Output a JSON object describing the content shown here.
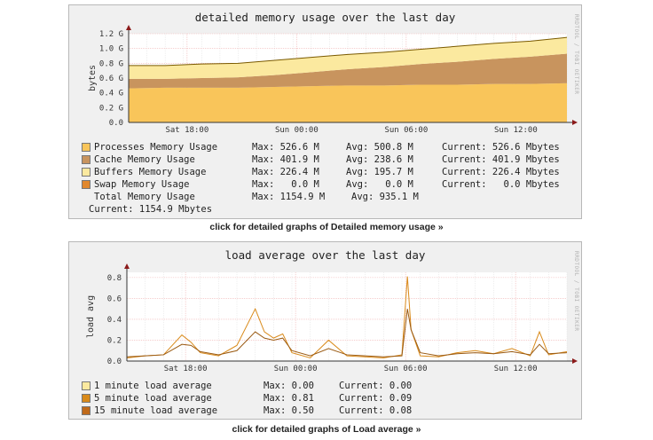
{
  "chart_data": [
    {
      "type": "area",
      "title": "detailed memory usage over the last day",
      "ylabel": "bytes",
      "ylim": [
        0,
        1.2
      ],
      "yticks": [
        "0.0",
        "0.2 G",
        "0.4 G",
        "0.6 G",
        "0.8 G",
        "1.0 G",
        "1.2 G"
      ],
      "xticks": [
        "Sat 18:00",
        "Sun 00:00",
        "Sun 06:00",
        "Sun 12:00"
      ],
      "x_hours": [
        0,
        2,
        4,
        6,
        8,
        10,
        12,
        14,
        16,
        18,
        20,
        22,
        24
      ],
      "stacked": true,
      "series": [
        {
          "name": "Processes Memory Usage",
          "color": "#f9c55a",
          "values": [
            0.46,
            0.47,
            0.47,
            0.47,
            0.48,
            0.49,
            0.5,
            0.5,
            0.51,
            0.51,
            0.52,
            0.52,
            0.53
          ]
        },
        {
          "name": "Cache Memory Usage",
          "color": "#c8945e",
          "values": [
            0.13,
            0.12,
            0.13,
            0.14,
            0.16,
            0.19,
            0.22,
            0.25,
            0.28,
            0.31,
            0.34,
            0.37,
            0.4
          ]
        },
        {
          "name": "Buffers Memory Usage",
          "color": "#fbe99f",
          "values": [
            0.18,
            0.18,
            0.19,
            0.19,
            0.2,
            0.2,
            0.2,
            0.2,
            0.2,
            0.21,
            0.21,
            0.21,
            0.22
          ]
        },
        {
          "name": "Swap Memory Usage",
          "color": "#e1882e",
          "values": [
            0,
            0,
            0,
            0,
            0,
            0,
            0,
            0,
            0,
            0,
            0,
            0,
            0
          ]
        }
      ],
      "total_line": {
        "name": "Total Memory Usage",
        "color": "#7a5a00"
      }
    },
    {
      "type": "line",
      "title": "load average over the last day",
      "ylabel": "load avg",
      "ylim": [
        0,
        0.85
      ],
      "yticks": [
        "0.0",
        "0.2",
        "0.4",
        "0.6",
        "0.8"
      ],
      "xticks": [
        "Sat 18:00",
        "Sun 00:00",
        "Sun 06:00",
        "Sun 12:00"
      ],
      "x_hours": [
        0,
        1,
        2,
        3,
        3.5,
        4,
        5,
        6,
        7,
        7.5,
        8,
        8.5,
        9,
        10,
        11,
        12,
        13,
        14,
        15,
        15.3,
        15.5,
        16,
        17,
        18,
        19,
        20,
        21,
        22,
        22.5,
        23,
        24
      ],
      "series": [
        {
          "name": "5 minute load average",
          "color": "#d98a1a",
          "values": [
            0.03,
            0.05,
            0.06,
            0.25,
            0.18,
            0.08,
            0.05,
            0.15,
            0.5,
            0.28,
            0.22,
            0.26,
            0.08,
            0.03,
            0.2,
            0.05,
            0.04,
            0.03,
            0.06,
            0.81,
            0.3,
            0.05,
            0.04,
            0.08,
            0.1,
            0.07,
            0.12,
            0.05,
            0.28,
            0.06,
            0.09
          ]
        },
        {
          "name": "15 minute load average",
          "color": "#9a5a12",
          "values": [
            0.04,
            0.05,
            0.06,
            0.16,
            0.15,
            0.09,
            0.06,
            0.1,
            0.28,
            0.22,
            0.2,
            0.22,
            0.1,
            0.05,
            0.12,
            0.06,
            0.05,
            0.04,
            0.05,
            0.5,
            0.3,
            0.08,
            0.05,
            0.07,
            0.08,
            0.07,
            0.09,
            0.06,
            0.16,
            0.07,
            0.08
          ]
        }
      ]
    }
  ],
  "mem_legend": [
    {
      "color": "#f9c55a",
      "name": "Processes Memory Usage",
      "max": "Max: 526.6 M",
      "avg": "Avg: 500.8 M",
      "cur": "Current: 526.6 Mbytes"
    },
    {
      "color": "#c8945e",
      "name": "Cache Memory Usage",
      "max": "Max: 401.9 M",
      "avg": "Avg: 238.6 M",
      "cur": "Current: 401.9 Mbytes"
    },
    {
      "color": "#fbe99f",
      "name": "Buffers Memory Usage",
      "max": "Max: 226.4 M",
      "avg": "Avg: 195.7 M",
      "cur": "Current: 226.4 Mbytes"
    },
    {
      "color": "#e1882e",
      "name": "Swap Memory Usage",
      "max": "Max:   0.0 M",
      "avg": "Avg:   0.0 M",
      "cur": "Current:   0.0 Mbytes"
    }
  ],
  "mem_total": {
    "name": "Total Memory Usage",
    "max": "Max: 1154.9 M",
    "avg": "Avg: 935.1 M",
    "current": "Current: 1154.9 Mbytes"
  },
  "load_legend": [
    {
      "color": "#fbe99f",
      "name": "1 minute load average",
      "max": "Max: 0.00",
      "cur": "Current: 0.00"
    },
    {
      "color": "#d98a1a",
      "name": "5 minute load average",
      "max": "Max: 0.81",
      "cur": "Current: 0.09"
    },
    {
      "color": "#c06a1a",
      "name": "15 minute load average",
      "max": "Max: 0.50",
      "cur": "Current: 0.08"
    }
  ],
  "watermark": "RRDTOOL / TOBI OETIKER",
  "links": {
    "mem": "click for detailed graphs of Detailed memory usage »",
    "load": "click for detailed graphs of Load average »"
  }
}
